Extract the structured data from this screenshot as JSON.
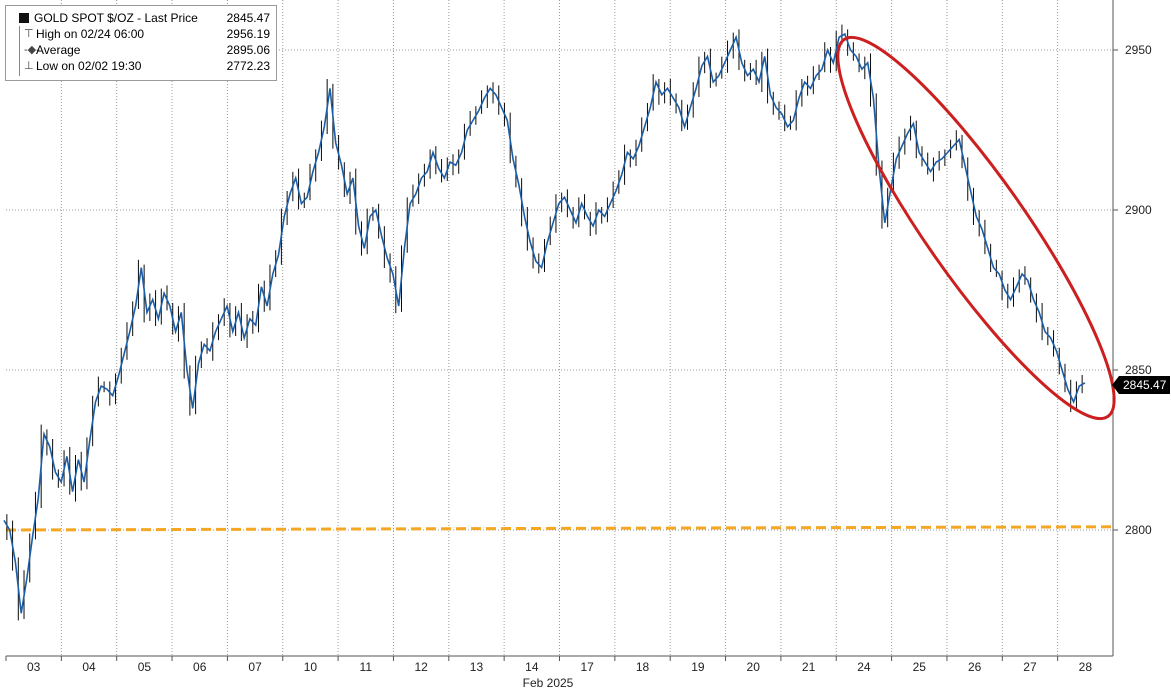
{
  "legend": {
    "title": "GOLD SPOT $/OZ - Last Price",
    "last_price": "2845.47",
    "rows": [
      {
        "label": "High on 02/24 06:00",
        "value": "2956.19"
      },
      {
        "label": "Average",
        "value": "2895.06"
      },
      {
        "label": "Low on 02/02 19:30",
        "value": "2772.23"
      }
    ]
  },
  "price_tag": "2845.47",
  "colors": {
    "line": "#1a5ea8",
    "candle": "#0a0a0a",
    "reference_line": "#f5a623",
    "highlight_ellipse": "#cc1f1f",
    "grid": "#9a9a9a"
  },
  "chart_data": {
    "type": "line",
    "title": "GOLD SPOT $/OZ - Last Price",
    "xlabel": "Feb 2025",
    "ylabel": "",
    "x_tick_labels": [
      "03",
      "04",
      "05",
      "06",
      "07",
      "10",
      "11",
      "12",
      "13",
      "14",
      "17",
      "18",
      "19",
      "20",
      "21",
      "24",
      "25",
      "26",
      "27",
      "28"
    ],
    "y_ticks": [
      2800,
      2850,
      2900,
      2950
    ],
    "ylim": [
      2762,
      2965
    ],
    "grid": true,
    "y_axis_side": "right",
    "reference_line": {
      "value_start": 2800,
      "value_end": 2801,
      "style": "dashed"
    },
    "annotation": {
      "type": "ellipse",
      "around": "decline from 24 to 28"
    },
    "series": [
      {
        "values": [
          2803,
          2800,
          2790,
          2774,
          2785,
          2798,
          2810,
          2830,
          2826,
          2818,
          2815,
          2823,
          2812,
          2822,
          2815,
          2828,
          2840,
          2845,
          2844,
          2842,
          2848,
          2855,
          2862,
          2870,
          2882,
          2868,
          2872,
          2866,
          2874,
          2870,
          2862,
          2868,
          2850,
          2838,
          2852,
          2858,
          2856,
          2862,
          2866,
          2870,
          2862,
          2868,
          2860,
          2866,
          2864,
          2876,
          2870,
          2880,
          2886,
          2898,
          2905,
          2910,
          2902,
          2904,
          2912,
          2918,
          2926,
          2938,
          2921,
          2914,
          2905,
          2910,
          2895,
          2888,
          2898,
          2900,
          2892,
          2885,
          2880,
          2870,
          2888,
          2902,
          2905,
          2910,
          2912,
          2918,
          2913,
          2910,
          2915,
          2914,
          2918,
          2925,
          2928,
          2931,
          2935,
          2938,
          2936,
          2932,
          2928,
          2916,
          2908,
          2898,
          2890,
          2884,
          2882,
          2890,
          2896,
          2902,
          2904,
          2900,
          2896,
          2902,
          2898,
          2895,
          2900,
          2898,
          2902,
          2906,
          2911,
          2918,
          2916,
          2920,
          2926,
          2932,
          2940,
          2936,
          2938,
          2935,
          2932,
          2926,
          2932,
          2938,
          2945,
          2948,
          2940,
          2942,
          2946,
          2950,
          2954,
          2946,
          2942,
          2944,
          2940,
          2948,
          2936,
          2932,
          2930,
          2926,
          2928,
          2935,
          2940,
          2938,
          2942,
          2944,
          2950,
          2946,
          2954,
          2955,
          2950,
          2948,
          2944,
          2946,
          2935,
          2913,
          2896,
          2906,
          2916,
          2920,
          2924,
          2927,
          2918,
          2915,
          2912,
          2915,
          2916,
          2918,
          2920,
          2922,
          2914,
          2906,
          2898,
          2894,
          2888,
          2882,
          2880,
          2875,
          2872,
          2876,
          2880,
          2878,
          2872,
          2868,
          2862,
          2860,
          2856,
          2850,
          2844,
          2840,
          2845,
          2846
        ]
      }
    ]
  }
}
